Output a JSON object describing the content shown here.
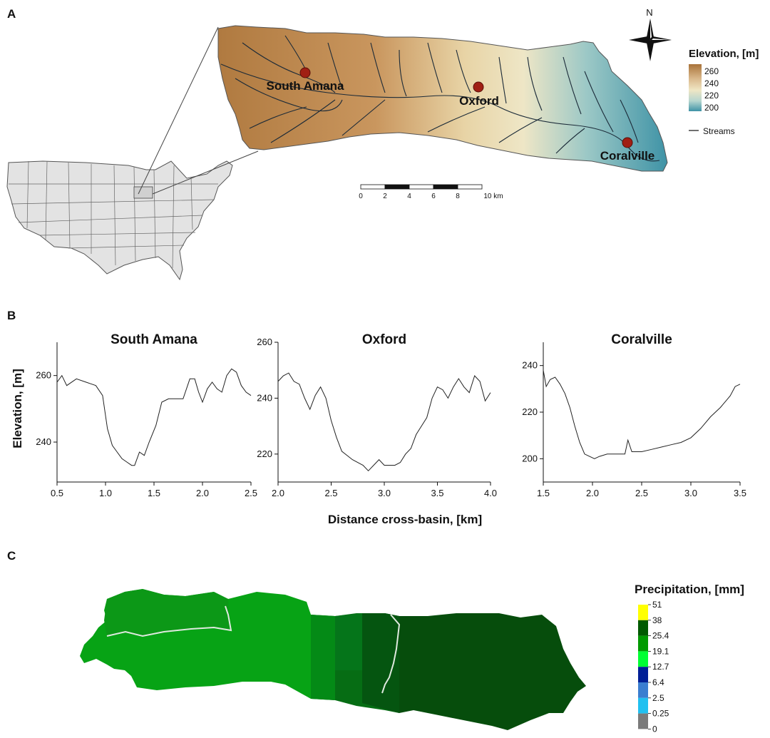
{
  "panels": {
    "a_label": "A",
    "b_label": "B",
    "c_label": "C"
  },
  "map": {
    "north_label": "N",
    "stations": [
      "South Amana",
      "Oxford",
      "Coralville"
    ],
    "station_color": "#a01f14",
    "elevation_legend": {
      "title": "Elevation, [m]",
      "ticks": [
        "260",
        "240",
        "220",
        "200"
      ],
      "colors": [
        "#a9733a",
        "#d9b78a",
        "#efe6c4",
        "#b6d6cf",
        "#3f93a6"
      ]
    },
    "streams_label": "Streams",
    "scale_bar": {
      "ticks": [
        "0",
        "2",
        "4",
        "6",
        "8",
        "10 km"
      ]
    }
  },
  "profiles": {
    "ylabel": "Elevation, [m]",
    "xlabel": "Distance cross-basin, [km]"
  },
  "chart_data": [
    {
      "type": "line",
      "title": "South Amana",
      "xlabel": "Distance cross-basin, [km]",
      "ylabel": "Elevation, [m]",
      "xlim": [
        0.5,
        2.5
      ],
      "ylim": [
        228,
        270
      ],
      "xticks": [
        "0.5",
        "1.0",
        "1.5",
        "2.0",
        "2.5"
      ],
      "yticks": [
        "240",
        "260"
      ],
      "x": [
        0.5,
        0.55,
        0.6,
        0.7,
        0.8,
        0.9,
        0.97,
        1.02,
        1.07,
        1.12,
        1.17,
        1.22,
        1.27,
        1.3,
        1.35,
        1.4,
        1.45,
        1.52,
        1.58,
        1.65,
        1.72,
        1.8,
        1.87,
        1.92,
        1.96,
        2.0,
        2.05,
        2.1,
        2.15,
        2.2,
        2.25,
        2.3,
        2.35,
        2.4,
        2.45,
        2.5
      ],
      "y": [
        258,
        260,
        257,
        259,
        258,
        257,
        254,
        244,
        239,
        237,
        235,
        234,
        233,
        233,
        237,
        236,
        240,
        245,
        252,
        253,
        253,
        253,
        259,
        259,
        255,
        252,
        256,
        258,
        256,
        255,
        260,
        262,
        261,
        257,
        255,
        254
      ]
    },
    {
      "type": "line",
      "title": "Oxford",
      "xlabel": "Distance cross-basin, [km]",
      "ylabel": "Elevation, [m]",
      "xlim": [
        2.0,
        4.0
      ],
      "ylim": [
        210,
        260
      ],
      "xticks": [
        "2.0",
        "2.5",
        "3.0",
        "3.5",
        "4.0"
      ],
      "yticks": [
        "220",
        "240",
        "260"
      ],
      "x": [
        2.0,
        2.05,
        2.1,
        2.15,
        2.2,
        2.25,
        2.3,
        2.35,
        2.4,
        2.45,
        2.5,
        2.55,
        2.6,
        2.7,
        2.8,
        2.85,
        2.9,
        2.95,
        3.0,
        3.05,
        3.1,
        3.15,
        3.2,
        3.25,
        3.3,
        3.35,
        3.4,
        3.45,
        3.5,
        3.55,
        3.6,
        3.65,
        3.7,
        3.75,
        3.8,
        3.85,
        3.9,
        3.95,
        4.0
      ],
      "y": [
        246,
        248,
        249,
        246,
        245,
        240,
        236,
        241,
        244,
        240,
        232,
        226,
        221,
        218,
        216,
        214,
        216,
        218,
        216,
        216,
        216,
        217,
        220,
        222,
        227,
        230,
        233,
        240,
        244,
        243,
        240,
        244,
        247,
        244,
        242,
        248,
        246,
        239,
        242
      ]
    },
    {
      "type": "line",
      "title": "Coralville",
      "xlabel": "Distance cross-basin, [km]",
      "ylabel": "Elevation, [m]",
      "xlim": [
        1.5,
        3.5
      ],
      "ylim": [
        190,
        250
      ],
      "xticks": [
        "1.5",
        "2.0",
        "2.5",
        "3.0",
        "3.5"
      ],
      "yticks": [
        "200",
        "220",
        "240"
      ],
      "x": [
        1.5,
        1.53,
        1.57,
        1.62,
        1.67,
        1.72,
        1.77,
        1.82,
        1.87,
        1.92,
        1.97,
        2.02,
        2.07,
        2.15,
        2.25,
        2.33,
        2.36,
        2.4,
        2.5,
        2.6,
        2.7,
        2.8,
        2.9,
        3.0,
        3.1,
        3.2,
        3.3,
        3.4,
        3.45,
        3.5
      ],
      "y": [
        238,
        231,
        234,
        235,
        232,
        228,
        222,
        214,
        207,
        202,
        201,
        200,
        201,
        202,
        202,
        202,
        208,
        203,
        203,
        204,
        205,
        206,
        207,
        209,
        213,
        218,
        222,
        227,
        231,
        232
      ]
    }
  ],
  "precip_legend": {
    "title": "Precipitation, [mm]",
    "ticks": [
      "51",
      "38",
      "25.4",
      "19.1",
      "12.7",
      "6.4",
      "2.5",
      "0.25",
      "0"
    ],
    "colors": [
      "#ffff00",
      "#005a00",
      "#009a00",
      "#00ff33",
      "#001f96",
      "#3a7ed0",
      "#21c0f0",
      "#7a7a7a"
    ]
  }
}
